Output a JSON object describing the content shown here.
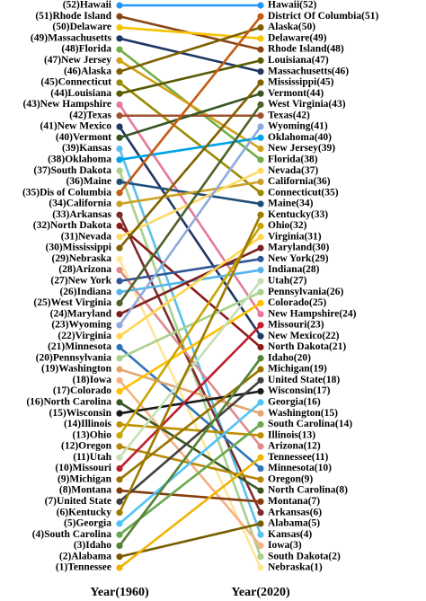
{
  "chart_data": {
    "type": "slope",
    "categories": [
      "Year(1960)",
      "Year(2020)"
    ],
    "ylim": [
      1,
      52
    ],
    "series": [
      {
        "color": "#2196f3",
        "values": [
          52,
          52
        ],
        "value_labels": [
          "(52)Hawaii",
          "Hawaii(52)"
        ]
      },
      {
        "color": "#8b4513",
        "values": [
          51,
          48
        ],
        "value_labels": [
          "(51)Rhode Island",
          "Rhode Island(48)"
        ]
      },
      {
        "color": "#f5c400",
        "values": [
          50,
          49
        ],
        "value_labels": [
          "(50)Delaware",
          "Delaware(49)"
        ]
      },
      {
        "color": "#1f3864",
        "values": [
          49,
          46
        ],
        "value_labels": [
          "(49)Massachusetts",
          "Massachusetts(46)"
        ]
      },
      {
        "color": "#70ad47",
        "values": [
          48,
          38
        ],
        "value_labels": [
          "(48)Florida",
          "Florida(38)"
        ]
      },
      {
        "color": "#d4a017",
        "values": [
          47,
          39
        ],
        "value_labels": [
          "(47)New Jersey",
          "New Jersey(39)"
        ]
      },
      {
        "color": "#7f6000",
        "values": [
          46,
          50
        ],
        "value_labels": [
          "(46)Alaska",
          "Alaska(50)"
        ]
      },
      {
        "color": "#9c8b00",
        "values": [
          45,
          35
        ],
        "value_labels": [
          "(45)Connecticut",
          "Connecticut(35)"
        ]
      },
      {
        "color": "#5a5a00",
        "values": [
          44,
          47
        ],
        "value_labels": [
          "(44)Louisiana",
          "Louisiana(47)"
        ]
      },
      {
        "color": "#e6799a",
        "values": [
          43,
          24
        ],
        "value_labels": [
          "(43)New Hampshire",
          "New Hampshire(24)"
        ]
      },
      {
        "color": "#a0522d",
        "values": [
          42,
          42
        ],
        "value_labels": [
          "(42)Texas",
          "Texas(42)"
        ]
      },
      {
        "color": "#203864",
        "values": [
          41,
          22
        ],
        "value_labels": [
          "(41)New Mexico",
          "New Mexico(22)"
        ]
      },
      {
        "color": "#375623",
        "values": [
          40,
          44
        ],
        "value_labels": [
          "(40)Vermont",
          "Vermont(44)"
        ]
      },
      {
        "color": "#5bc0eb",
        "values": [
          39,
          4
        ],
        "value_labels": [
          "(39)Kansas",
          "Kansas(4)"
        ]
      },
      {
        "color": "#00a2e8",
        "values": [
          38,
          40
        ],
        "value_labels": [
          "(38)Oklahoma",
          "Oklahoma(40)"
        ]
      },
      {
        "color": "#a9d18e",
        "values": [
          37,
          2
        ],
        "value_labels": [
          "(37)South Dakota",
          "South Dakota(2)"
        ]
      },
      {
        "color": "#1f4e79",
        "values": [
          36,
          34
        ],
        "value_labels": [
          "(36)Maine",
          "Maine(34)"
        ]
      },
      {
        "color": "#c55a11",
        "values": [
          35,
          51
        ],
        "value_labels": [
          "(35)Dis of Columbia",
          "District Of Columbia(51)"
        ]
      },
      {
        "color": "#c9a227",
        "values": [
          34,
          36
        ],
        "value_labels": [
          "(34)California",
          "California(36)"
        ]
      },
      {
        "color": "#7b2c2c",
        "values": [
          33,
          6
        ],
        "value_labels": [
          "(33)Arkansas",
          "Arkansas(6)"
        ]
      },
      {
        "color": "#8b1a1a",
        "values": [
          32,
          21
        ],
        "value_labels": [
          "(32)North Dakota",
          "North Dakota(21)"
        ]
      },
      {
        "color": "#ffd966",
        "values": [
          31,
          37
        ],
        "value_labels": [
          "(31)Nevada",
          "Nevada(37)"
        ]
      },
      {
        "color": "#806000",
        "values": [
          30,
          45
        ],
        "value_labels": [
          "(30)Mississippi",
          "Mississippi(45)"
        ]
      },
      {
        "color": "#ffe699",
        "values": [
          29,
          1
        ],
        "value_labels": [
          "(29)Nebraska",
          "Nebraska(1)"
        ]
      },
      {
        "color": "#e08a8a",
        "values": [
          28,
          12
        ],
        "value_labels": [
          "(28)Arizona",
          "Arizona(12)"
        ]
      },
      {
        "color": "#2f5597",
        "values": [
          27,
          29
        ],
        "value_labels": [
          "(27)New York",
          "New York(29)"
        ]
      },
      {
        "color": "#56b4e9",
        "values": [
          26,
          28
        ],
        "value_labels": [
          "(26)Indiana",
          "Indiana(28)"
        ]
      },
      {
        "color": "#4f6228",
        "values": [
          25,
          43
        ],
        "value_labels": [
          "(25)West Virginia",
          "West Virginia(43)"
        ]
      },
      {
        "color": "#7b1f1f",
        "values": [
          24,
          30
        ],
        "value_labels": [
          "(24)Maryland",
          "Maryland(30)"
        ]
      },
      {
        "color": "#8faadc",
        "values": [
          23,
          41
        ],
        "value_labels": [
          "(23)Wyoming",
          "Wyoming(41)"
        ]
      },
      {
        "color": "#ffd54f",
        "values": [
          22,
          31
        ],
        "value_labels": [
          "(22)Virginia",
          "Virginia(31)"
        ]
      },
      {
        "color": "#2e75b6",
        "values": [
          21,
          10
        ],
        "value_labels": [
          "(21)Minnesota",
          "Minnesota(10)"
        ]
      },
      {
        "color": "#a9d08e",
        "values": [
          20,
          26
        ],
        "value_labels": [
          "(20)Pennsylvania",
          "Pennsylvania(26)"
        ]
      },
      {
        "color": "#e2a66f",
        "values": [
          19,
          15
        ],
        "value_labels": [
          "(19)Washington",
          "Washington(15)"
        ]
      },
      {
        "color": "#f4b183",
        "values": [
          18,
          3
        ],
        "value_labels": [
          "(18)Iowa",
          "Iowa(3)"
        ]
      },
      {
        "color": "#ffc000",
        "values": [
          17,
          25
        ],
        "value_labels": [
          "(17)Colorado",
          "Colorado(25)"
        ]
      },
      {
        "color": "#385723",
        "values": [
          16,
          8
        ],
        "value_labels": [
          "(16)North Carolina",
          "North Carolina(8)"
        ]
      },
      {
        "color": "#1a1a1a",
        "values": [
          15,
          17
        ],
        "value_labels": [
          "(15)Wisconsin",
          "Wisconsin(17)"
        ]
      },
      {
        "color": "#bf9000",
        "values": [
          14,
          13
        ],
        "value_labels": [
          "(14)Illinois",
          "Illinois(13)"
        ]
      },
      {
        "color": "#c9a400",
        "values": [
          13,
          32
        ],
        "value_labels": [
          "(13)Ohio",
          "Ohio(32)"
        ]
      },
      {
        "color": "#b8860b",
        "values": [
          12,
          9
        ],
        "value_labels": [
          "(12)Oregon",
          "Oregon(9)"
        ]
      },
      {
        "color": "#c5e0b4",
        "values": [
          11,
          27
        ],
        "value_labels": [
          "(11)Utah",
          "Utah(27)"
        ]
      },
      {
        "color": "#bf1e2e",
        "values": [
          10,
          23
        ],
        "value_labels": [
          "(10)Missouri",
          "Missouri(23)"
        ]
      },
      {
        "color": "#997300",
        "values": [
          9,
          19
        ],
        "value_labels": [
          "(9)Michigan",
          "Michigan(19)"
        ]
      },
      {
        "color": "#843c0c",
        "values": [
          8,
          7
        ],
        "value_labels": [
          "(8)Montana",
          "Montana(7)"
        ]
      },
      {
        "color": "#404040",
        "values": [
          7,
          18
        ],
        "value_labels": [
          "(7)United State",
          "United State(18)"
        ]
      },
      {
        "color": "#9e7b00",
        "values": [
          6,
          33
        ],
        "value_labels": [
          "(6)Kentucky",
          "Kentucky(33)"
        ]
      },
      {
        "color": "#4fc3f7",
        "values": [
          5,
          16
        ],
        "value_labels": [
          "(5)Georgia",
          "Georgia(16)"
        ]
      },
      {
        "color": "#6aa84f",
        "values": [
          4,
          14
        ],
        "value_labels": [
          "(4)South Carolina",
          "South Carolina(14)"
        ]
      },
      {
        "color": "#548235",
        "values": [
          3,
          20
        ],
        "value_labels": [
          "(3)Idaho",
          "Idaho(20)"
        ]
      },
      {
        "color": "#7a5c00",
        "values": [
          2,
          5
        ],
        "value_labels": [
          "(2)Alabama",
          "Alabama(5)"
        ]
      },
      {
        "color": "#f0b400",
        "values": [
          1,
          11
        ],
        "value_labels": [
          "(1)Tennessee",
          "Tennessee(11)"
        ]
      }
    ]
  }
}
